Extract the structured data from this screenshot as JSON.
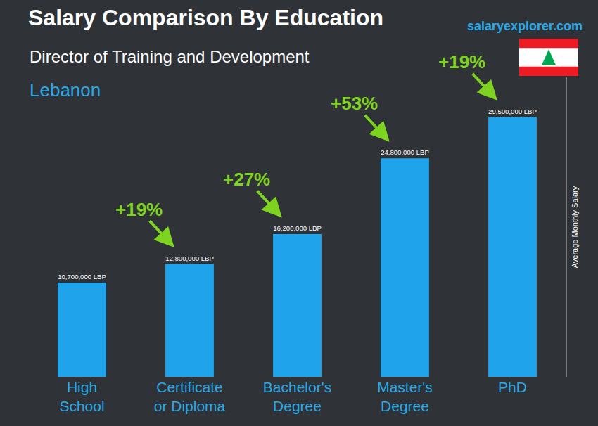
{
  "chart_data": {
    "type": "bar",
    "title": "Salary Comparison By Education",
    "subtitle": "Director of Training and Development",
    "country": "Lebanon",
    "source": "salaryexplorer.com",
    "ylabel": "Average Monthly Salary",
    "categories": [
      "High School",
      "Certificate or Diploma",
      "Bachelor's Degree",
      "Master's Degree",
      "PhD"
    ],
    "values": [
      10700000,
      12800000,
      16200000,
      24800000,
      29500000
    ],
    "value_labels": [
      "10,700,000 LBP",
      "12,800,000 LBP",
      "16,200,000 LBP",
      "24,800,000 LBP",
      "29,500,000 LBP"
    ],
    "data_labels": true,
    "color": "#1fa3ea",
    "ylim": [
      0,
      34000000
    ],
    "yticks": [],
    "grid": false,
    "tick_labels": "x",
    "annotations": [
      {
        "text": "+19%",
        "from": "High School",
        "to": "Certificate or Diploma"
      },
      {
        "text": "+27%",
        "from": "Certificate or Diploma",
        "to": "Bachelor's Degree"
      },
      {
        "text": "+53%",
        "from": "Bachelor's Degree",
        "to": "Master's Degree"
      },
      {
        "text": "+19%",
        "from": "Master's Degree",
        "to": "PhD"
      }
    ]
  }
}
